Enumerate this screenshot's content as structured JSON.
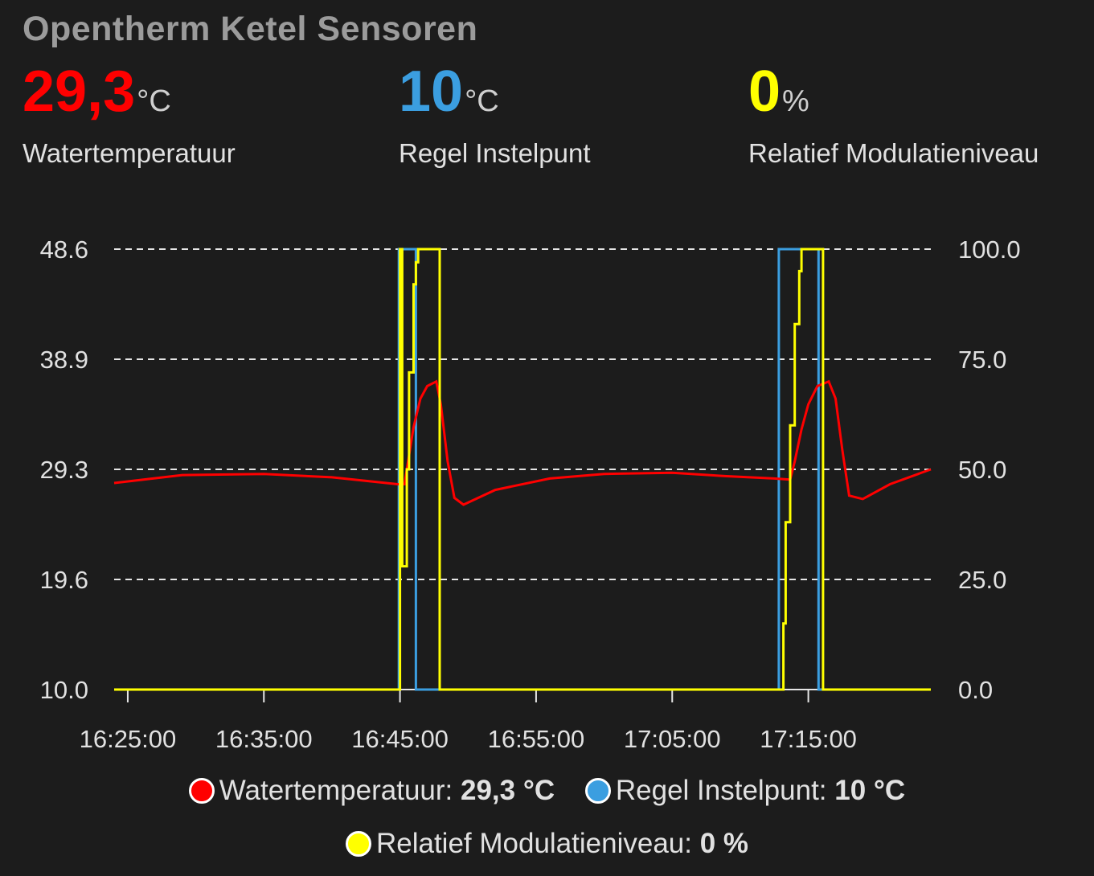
{
  "card": {
    "title": "Opentherm Ketel Sensoren",
    "stats": [
      {
        "value": "29,3",
        "unit": "°C",
        "name": "Watertemperatuur",
        "color": "#ff0000"
      },
      {
        "value": "10",
        "unit": "°C",
        "name": "Regel Instelpunt",
        "color": "#3b9ee0"
      },
      {
        "value": "0",
        "unit": "%",
        "name": "Relatief Modulatieniveau",
        "color": "#ffff00"
      }
    ]
  },
  "legend": [
    {
      "label": "Watertemperatuur:",
      "value": "29,3 °C",
      "color": "#ff0000"
    },
    {
      "label": "Regel Instelpunt:",
      "value": "10 °C",
      "color": "#3b9ee0"
    },
    {
      "label": "Relatief Modulatieniveau:",
      "value": "0 %",
      "color": "#ffff00"
    }
  ],
  "chart_data": {
    "type": "line",
    "x_ticks": [
      "16:25:00",
      "16:35:00",
      "16:45:00",
      "16:55:00",
      "17:05:00",
      "17:15:00"
    ],
    "x_range": [
      "16:24:00",
      "17:24:00"
    ],
    "y_left": {
      "ticks": [
        "48.6",
        "38.9",
        "29.3",
        "19.6",
        "10.0"
      ],
      "ylim": [
        10.0,
        48.6
      ]
    },
    "y_right": {
      "ticks": [
        "100.0",
        "75.0",
        "50.0",
        "25.0",
        "0.0"
      ],
      "ylim": [
        0.0,
        100.0
      ]
    },
    "grid": true,
    "series": [
      {
        "name": "Watertemperatuur",
        "axis": "left",
        "color": "#ff0000",
        "points": [
          [
            "16:24:00",
            28.1
          ],
          [
            "16:29:00",
            28.8
          ],
          [
            "16:35:00",
            28.9
          ],
          [
            "16:40:00",
            28.6
          ],
          [
            "16:44:50",
            28.0
          ],
          [
            "16:45:20",
            28.0
          ],
          [
            "16:45:30",
            29.3
          ],
          [
            "16:46:00",
            33.0
          ],
          [
            "16:46:30",
            35.5
          ],
          [
            "16:47:00",
            36.6
          ],
          [
            "16:47:40",
            37.0
          ],
          [
            "16:48:00",
            35.0
          ],
          [
            "16:48:30",
            30.0
          ],
          [
            "16:49:00",
            26.8
          ],
          [
            "16:49:40",
            26.2
          ],
          [
            "16:52:00",
            27.5
          ],
          [
            "16:56:00",
            28.5
          ],
          [
            "17:00:00",
            28.9
          ],
          [
            "17:05:00",
            29.0
          ],
          [
            "17:09:00",
            28.7
          ],
          [
            "17:12:30",
            28.5
          ],
          [
            "17:13:40",
            28.4
          ],
          [
            "17:14:00",
            30.0
          ],
          [
            "17:14:30",
            32.8
          ],
          [
            "17:15:00",
            35.0
          ],
          [
            "17:15:40",
            36.6
          ],
          [
            "17:16:30",
            37.0
          ],
          [
            "17:17:00",
            35.5
          ],
          [
            "17:17:30",
            31.0
          ],
          [
            "17:18:00",
            27.0
          ],
          [
            "17:19:00",
            26.7
          ],
          [
            "17:21:00",
            28.0
          ],
          [
            "17:24:00",
            29.3
          ]
        ]
      },
      {
        "name": "Regel Instelpunt",
        "axis": "left",
        "color": "#3b9ee0",
        "points": [
          [
            "16:24:00",
            10.0
          ],
          [
            "16:44:55",
            10.0
          ],
          [
            "16:44:55",
            48.6
          ],
          [
            "16:46:10",
            48.6
          ],
          [
            "16:46:10",
            10.0
          ],
          [
            "17:12:50",
            10.0
          ],
          [
            "17:12:50",
            48.6
          ],
          [
            "17:15:45",
            48.6
          ],
          [
            "17:15:45",
            10.0
          ],
          [
            "17:24:00",
            10.0
          ]
        ]
      },
      {
        "name": "Relatief Modulatieniveau",
        "axis": "right",
        "color": "#ffff00",
        "points": [
          [
            "16:24:00",
            0
          ],
          [
            "16:45:00",
            0
          ],
          [
            "16:45:00",
            100
          ],
          [
            "16:45:10",
            100
          ],
          [
            "16:45:10",
            28
          ],
          [
            "16:45:30",
            28
          ],
          [
            "16:45:30",
            50
          ],
          [
            "16:45:40",
            50
          ],
          [
            "16:45:40",
            72
          ],
          [
            "16:46:00",
            72
          ],
          [
            "16:46:00",
            92
          ],
          [
            "16:46:10",
            92
          ],
          [
            "16:46:10",
            97
          ],
          [
            "16:46:20",
            97
          ],
          [
            "16:46:20",
            100
          ],
          [
            "16:47:55",
            100
          ],
          [
            "16:47:55",
            0
          ],
          [
            "17:13:10",
            0
          ],
          [
            "17:13:10",
            15
          ],
          [
            "17:13:20",
            15
          ],
          [
            "17:13:20",
            38
          ],
          [
            "17:13:40",
            38
          ],
          [
            "17:13:40",
            60
          ],
          [
            "17:14:00",
            60
          ],
          [
            "17:14:00",
            83
          ],
          [
            "17:14:20",
            83
          ],
          [
            "17:14:20",
            95
          ],
          [
            "17:14:30",
            95
          ],
          [
            "17:14:30",
            100
          ],
          [
            "17:16:05",
            100
          ],
          [
            "17:16:05",
            0
          ],
          [
            "17:24:00",
            0
          ]
        ]
      }
    ]
  }
}
